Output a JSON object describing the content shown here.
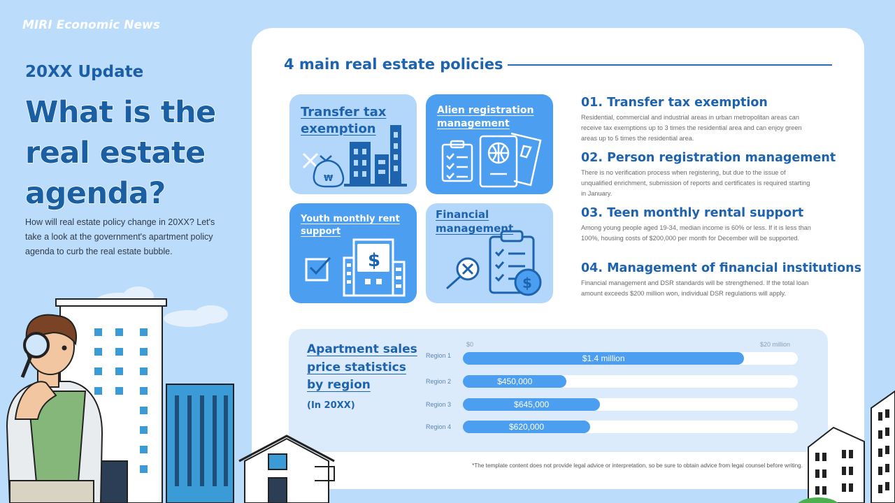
{
  "brand": "MIRI Economic News",
  "update_label": "20XX Update",
  "headline": "What is the real estate agenda?",
  "intro": "How will real estate policy change in 20XX? Let's take a look at the government's apartment policy agenda to curb the real estate bubble.",
  "section_title": "4 main real estate policies",
  "tiles": [
    {
      "label": "Transfer tax exemption",
      "icon": "money-bag-buildings-icon"
    },
    {
      "label": "Alien registration management",
      "icon": "passport-checklist-icon"
    },
    {
      "label": "Youth monthly rent support",
      "icon": "dollar-building-icon"
    },
    {
      "label": "Financial management",
      "icon": "clipboard-magnifier-icon"
    }
  ],
  "policies": [
    {
      "title": "01. Transfer tax exemption",
      "body": "Residential, commercial and industrial areas in urban metropolitan areas can receive tax exemptions up to 3 times the residential area and can enjoy green areas up to 5 times the residential area."
    },
    {
      "title": "02. Person registration management",
      "body": "There is no verification process when registering, but due to the issue of unqualified enrichment, submission of reports and certificates is required starting in January."
    },
    {
      "title": "03. Teen monthly rental support",
      "body": "Among young people aged 19-34, median income is 60% or less. If it is less than 100%, housing costs of $200,000 per month for December will be supported."
    },
    {
      "title": "04. Management of financial institutions",
      "body": "Financial management and DSR standards will be strengthened. If the total loan amount exceeds $200 million won, individual DSR regulations will apply."
    }
  ],
  "stats": {
    "title": "Apartment sales price statistics by region",
    "year": "(In 20XX)",
    "axis_min": "$0",
    "axis_max": "$20 million"
  },
  "chart_data": {
    "type": "bar",
    "orientation": "horizontal",
    "categories": [
      "Region 1",
      "Region 2",
      "Region 3",
      "Region 4"
    ],
    "series": [
      {
        "values": [
          1400000,
          450000,
          645000,
          620000
        ]
      }
    ],
    "data_labels": [
      "$1.4 million",
      "$450,000",
      "$645,000",
      "$620,000"
    ],
    "fill_fractions": [
      0.84,
      0.31,
      0.41,
      0.38
    ],
    "xlim_labels": [
      "$0",
      "$20 million"
    ],
    "bar_color": "#4c9ef0",
    "track_color": "#ffffff"
  },
  "footnote": "*The template content does not provide legal advice or interpretation, so be sure to obtain advice from legal counsel before writing.",
  "colors": {
    "primary": "#1d63ad",
    "accent": "#4c9ef0",
    "background": "#bcdcfb",
    "tile_light": "#b3d7fb"
  }
}
